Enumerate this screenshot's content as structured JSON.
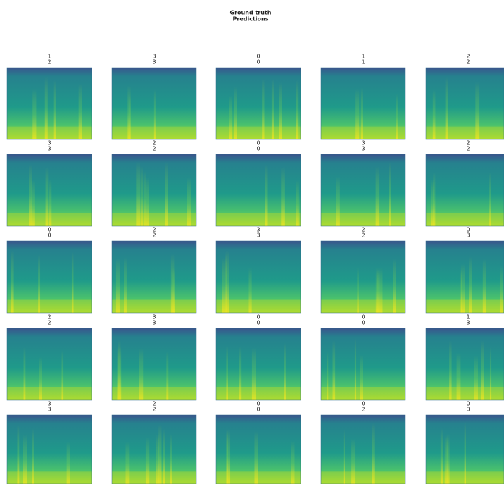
{
  "title": [
    "Ground truth",
    "Predictions"
  ],
  "panels": [
    {
      "truth": "1",
      "prediction": "2"
    },
    {
      "truth": "3",
      "prediction": "3"
    },
    {
      "truth": "0",
      "prediction": "0"
    },
    {
      "truth": "1",
      "prediction": "1"
    },
    {
      "truth": "2",
      "prediction": "2"
    },
    {
      "truth": "3",
      "prediction": "3"
    },
    {
      "truth": "2",
      "prediction": "2"
    },
    {
      "truth": "0",
      "prediction": "0"
    },
    {
      "truth": "3",
      "prediction": "3"
    },
    {
      "truth": "2",
      "prediction": "2"
    },
    {
      "truth": "0",
      "prediction": "0"
    },
    {
      "truth": "2",
      "prediction": "2"
    },
    {
      "truth": "3",
      "prediction": "3"
    },
    {
      "truth": "2",
      "prediction": "2"
    },
    {
      "truth": "0",
      "prediction": "3"
    },
    {
      "truth": "2",
      "prediction": "2"
    },
    {
      "truth": "3",
      "prediction": "3"
    },
    {
      "truth": "0",
      "prediction": "0"
    },
    {
      "truth": "0",
      "prediction": "0"
    },
    {
      "truth": "1",
      "prediction": "3"
    },
    {
      "truth": "3",
      "prediction": "3"
    },
    {
      "truth": "2",
      "prediction": "2"
    },
    {
      "truth": "0",
      "prediction": "0"
    },
    {
      "truth": "0",
      "prediction": "2"
    },
    {
      "truth": "0",
      "prediction": "0"
    }
  ]
}
